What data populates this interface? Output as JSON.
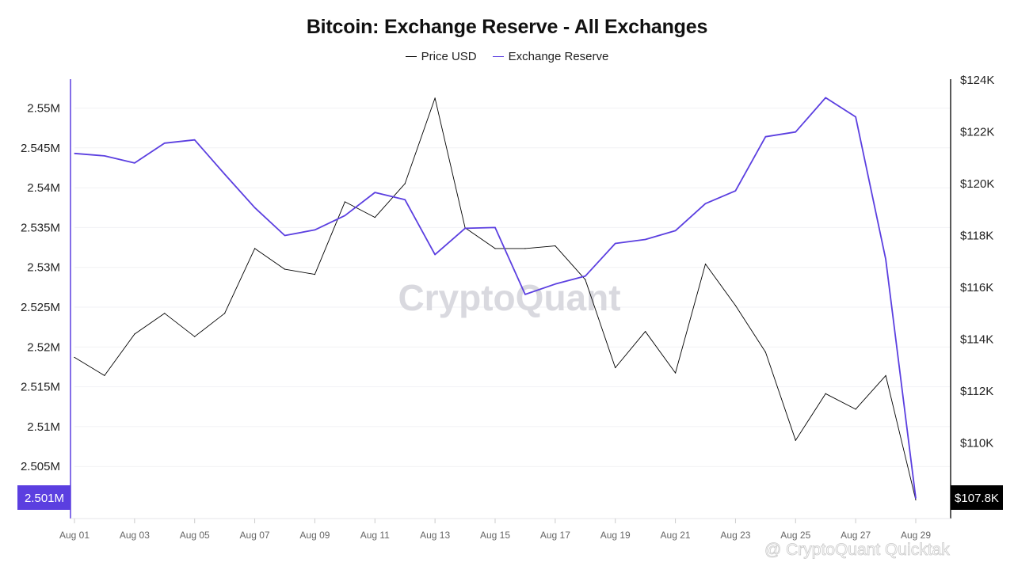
{
  "chart_data": {
    "type": "line",
    "title": "Bitcoin: Exchange Reserve - All Exchanges",
    "x": [
      "Aug 01",
      "Aug 02",
      "Aug 03",
      "Aug 04",
      "Aug 05",
      "Aug 06",
      "Aug 07",
      "Aug 08",
      "Aug 09",
      "Aug 10",
      "Aug 11",
      "Aug 12",
      "Aug 13",
      "Aug 14",
      "Aug 15",
      "Aug 16",
      "Aug 17",
      "Aug 18",
      "Aug 19",
      "Aug 20",
      "Aug 21",
      "Aug 22",
      "Aug 23",
      "Aug 24",
      "Aug 25",
      "Aug 26",
      "Aug 27",
      "Aug 28",
      "Aug 29"
    ],
    "x_tick_labels": [
      "Aug 01",
      "Aug 03",
      "Aug 05",
      "Aug 07",
      "Aug 09",
      "Aug 11",
      "Aug 13",
      "Aug 15",
      "Aug 17",
      "Aug 19",
      "Aug 21",
      "Aug 23",
      "Aug 25",
      "Aug 27",
      "Aug 29"
    ],
    "series": [
      {
        "name": "Price USD",
        "axis": "right",
        "color": "#000000",
        "values": [
          113300,
          112600,
          114200,
          115000,
          114100,
          115000,
          117500,
          116700,
          116500,
          119300,
          118700,
          120000,
          123300,
          118300,
          117500,
          117500,
          117600,
          116300,
          112900,
          114300,
          112700,
          116900,
          115300,
          113500,
          110100,
          111900,
          111300,
          112600,
          107800
        ]
      },
      {
        "name": "Exchange Reserve",
        "axis": "left",
        "color": "#5b3fe0",
        "values": [
          2544300,
          2544000,
          2543100,
          2545600,
          2546000,
          2541700,
          2537500,
          2534000,
          2534700,
          2536500,
          2539400,
          2538500,
          2531600,
          2534900,
          2535000,
          2526600,
          2527900,
          2528900,
          2533000,
          2533500,
          2534600,
          2538000,
          2539600,
          2546400,
          2547000,
          2551300,
          2548900,
          2531000,
          2501000
        ]
      }
    ],
    "y_left": {
      "ylim": [
        2500000,
        2554000
      ],
      "tick_labels": [
        "2.55M",
        "2.545M",
        "2.54M",
        "2.535M",
        "2.53M",
        "2.525M",
        "2.52M",
        "2.515M",
        "2.51M",
        "2.505M"
      ],
      "tick_values": [
        2550000,
        2545000,
        2540000,
        2535000,
        2530000,
        2525000,
        2520000,
        2515000,
        2510000,
        2505000
      ]
    },
    "y_right": {
      "ylim": [
        107000,
        124000
      ],
      "tick_labels": [
        "$124K",
        "$122K",
        "$120K",
        "$118K",
        "$116K",
        "$114K",
        "$112K",
        "$110K"
      ],
      "tick_values": [
        124000,
        122000,
        120000,
        118000,
        116000,
        114000,
        112000,
        110000
      ]
    },
    "last_value_badges": {
      "left": "2.501M",
      "right": "$107.8K"
    },
    "legend_position": "top-center",
    "grid": true,
    "watermark": "CryptoQuant",
    "credit": "@ CryptoQuant Quicktak"
  }
}
